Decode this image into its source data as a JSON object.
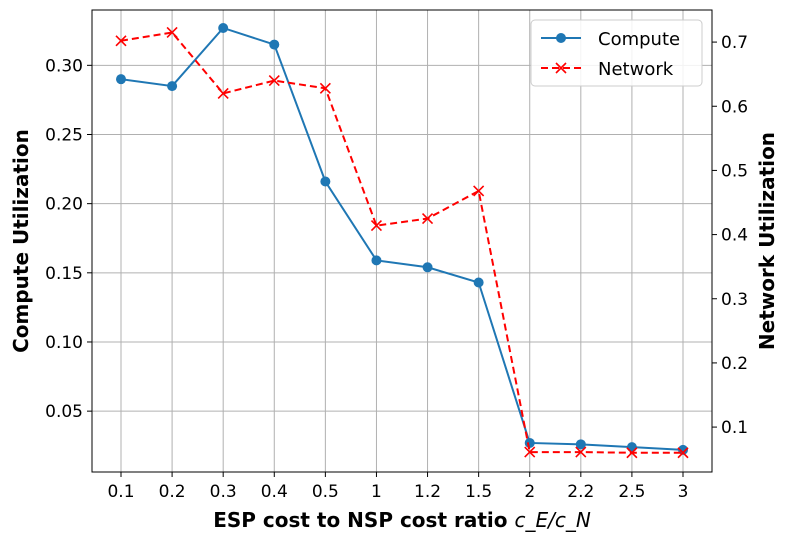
{
  "chart_data": {
    "type": "line",
    "categories": [
      "0.1",
      "0.2",
      "0.3",
      "0.4",
      "0.5",
      "1",
      "1.2",
      "1.5",
      "2",
      "2.2",
      "2.5",
      "3"
    ],
    "xlabel": "ESP cost to NSP cost ratio",
    "xlabel_math": "c_E/c_N",
    "ylabel_left": "Compute Utilization",
    "ylabel_right": "Network Utilization",
    "y_left_lim": [
      0.006,
      0.34
    ],
    "y_left_ticks": [
      0.05,
      0.1,
      0.15,
      0.2,
      0.25,
      0.3
    ],
    "y_left_tick_labels": [
      "0.05",
      "0.10",
      "0.15",
      "0.20",
      "0.25",
      "0.30"
    ],
    "y_right_lim": [
      0.03,
      0.75
    ],
    "y_right_ticks": [
      0.1,
      0.2,
      0.3,
      0.4,
      0.5,
      0.6,
      0.7
    ],
    "y_right_tick_labels": [
      "0.1",
      "0.2",
      "0.3",
      "0.4",
      "0.5",
      "0.6",
      "0.7"
    ],
    "grid": true,
    "legend_position": "top-right",
    "series": [
      {
        "name": "Compute",
        "axis": "left",
        "color": "#1f77b4",
        "marker": "circle",
        "line_style": "solid",
        "values": [
          0.29,
          0.285,
          0.327,
          0.315,
          0.216,
          0.159,
          0.154,
          0.143,
          0.027,
          0.026,
          0.024,
          0.022
        ]
      },
      {
        "name": "Network",
        "axis": "right",
        "color": "#ff0000",
        "marker": "x",
        "line_style": "dashed",
        "values": [
          0.702,
          0.715,
          0.62,
          0.64,
          0.628,
          0.414,
          0.425,
          0.468,
          0.061,
          0.061,
          0.06,
          0.06
        ]
      }
    ]
  }
}
